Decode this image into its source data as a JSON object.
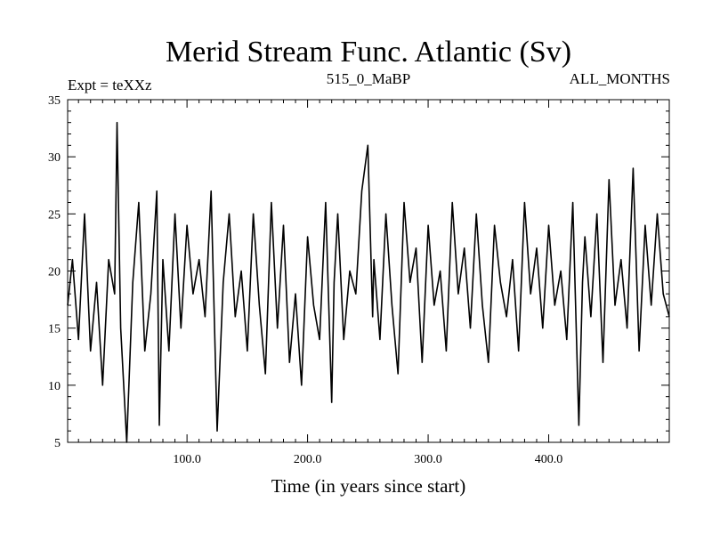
{
  "chart_data": {
    "type": "line",
    "title": "Merid Stream Func. Atlantic (Sv)",
    "subtitle_left": "Expt = teXXz",
    "subtitle_center": "515_0_MaBP",
    "subtitle_right": "ALL_MONTHS",
    "xlabel": "Time (in years since start)",
    "ylabel": "",
    "xlim": [
      1,
      500
    ],
    "ylim": [
      5,
      35
    ],
    "x_ticks": [
      100,
      200,
      300,
      400
    ],
    "x_tick_labels": [
      "100.0",
      "200.0",
      "300.0",
      "400.0"
    ],
    "y_ticks": [
      5,
      10,
      15,
      20,
      25,
      30,
      35
    ],
    "y_tick_labels": [
      "5",
      "10",
      "15",
      "20",
      "25",
      "30",
      "35"
    ],
    "grid": false,
    "legend": "none",
    "line_color": "#000000",
    "series": [
      {
        "name": "Merid Stream Func. Atlantic",
        "x": [
          1,
          5,
          10,
          15,
          20,
          25,
          30,
          35,
          40,
          42,
          45,
          50,
          55,
          60,
          65,
          70,
          75,
          77,
          80,
          85,
          90,
          95,
          100,
          105,
          110,
          115,
          120,
          125,
          130,
          135,
          140,
          145,
          150,
          155,
          160,
          165,
          170,
          175,
          180,
          185,
          190,
          195,
          200,
          205,
          210,
          215,
          220,
          222,
          225,
          230,
          235,
          240,
          245,
          250,
          254,
          255,
          260,
          265,
          270,
          275,
          280,
          285,
          290,
          295,
          300,
          305,
          310,
          315,
          320,
          325,
          330,
          335,
          340,
          345,
          350,
          355,
          360,
          365,
          370,
          375,
          380,
          385,
          390,
          395,
          400,
          405,
          410,
          415,
          420,
          425,
          428,
          430,
          435,
          440,
          445,
          450,
          455,
          460,
          465,
          470,
          475,
          480,
          485,
          490,
          495,
          500
        ],
        "values": [
          17,
          21,
          14,
          25,
          13,
          19,
          10,
          21,
          18,
          33,
          15,
          5,
          19,
          26,
          13,
          18,
          27,
          6.5,
          21,
          13,
          25,
          15,
          24,
          18,
          21,
          16,
          27,
          6,
          19,
          25,
          16,
          20,
          13,
          25,
          17,
          11,
          26,
          15,
          24,
          12,
          18,
          10,
          23,
          17,
          14,
          26,
          8.5,
          19,
          25,
          14,
          20,
          18,
          27,
          31,
          16,
          21,
          14,
          25,
          17,
          11,
          26,
          19,
          22,
          12,
          24,
          17,
          20,
          13,
          26,
          18,
          22,
          15,
          25,
          17,
          12,
          24,
          19,
          16,
          21,
          13,
          26,
          18,
          22,
          15,
          24,
          17,
          20,
          14,
          26,
          6.5,
          19,
          23,
          16,
          25,
          12,
          28,
          17,
          21,
          15,
          29,
          13,
          24,
          17,
          25,
          18,
          16
        ]
      }
    ]
  }
}
